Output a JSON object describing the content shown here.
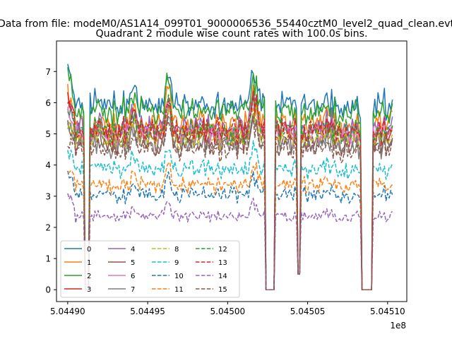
{
  "figure": {
    "suptitle": "Data from file: modeM0/AS1A14_099T01_9000006536_55440cztM0_level2_quad_clean.evt"
  },
  "chart_data": {
    "type": "line",
    "title": "Quadrant 2 module wise count rates with 100.0s bins.",
    "xlabel": "",
    "ylabel": "",
    "x_offset_label": "1e8",
    "xlim": [
      504489300,
      504511200
    ],
    "ylim": [
      -0.38,
      7.98
    ],
    "x_ticks": [
      504490000,
      504495000,
      504500000,
      504505000,
      504510000
    ],
    "x_tick_labels": [
      "5.04490",
      "5.04495",
      "5.04500",
      "5.04505",
      "5.04510"
    ],
    "y_ticks": [
      0,
      1,
      2,
      3,
      4,
      5,
      6,
      7
    ],
    "y_tick_labels": [
      "0",
      "1",
      "2",
      "3",
      "4",
      "5",
      "6",
      "7"
    ],
    "x_start": 504490000,
    "x_step": 100,
    "n_points": 204,
    "gaps": [
      {
        "start": 504491100,
        "end": 504491300,
        "value": 0
      },
      {
        "start": 504502400,
        "end": 504502900,
        "value": 0
      },
      {
        "start": 504504400,
        "end": 504504500,
        "value": 0.5
      },
      {
        "start": 504508400,
        "end": 504509000,
        "value": 0
      }
    ],
    "features": [
      {
        "center": 504496300,
        "width": 200,
        "amplitude": 0.22
      },
      {
        "center": 504501700,
        "width": 300,
        "amplitude": 0.18
      },
      {
        "center": 504494100,
        "width": 250,
        "amplitude": 0.08
      },
      {
        "center": 504506200,
        "width": 300,
        "amplitude": 0.07
      }
    ],
    "legend_location": "lower left",
    "series": [
      {
        "name": "0",
        "color": "#1f77b4",
        "style": "solid",
        "level": 5.9,
        "start": 7.55
      },
      {
        "name": "1",
        "color": "#ff7f0e",
        "style": "solid",
        "level": 5.3,
        "start": 6.6
      },
      {
        "name": "2",
        "color": "#2ca02c",
        "style": "solid",
        "level": 5.7,
        "start": 7.3
      },
      {
        "name": "3",
        "color": "#d62728",
        "style": "solid",
        "level": 5.05,
        "start": 6.5
      },
      {
        "name": "4",
        "color": "#9467bd",
        "style": "solid",
        "level": 5.2,
        "start": 6.2
      },
      {
        "name": "5",
        "color": "#8c564b",
        "style": "solid",
        "level": 4.75,
        "start": 5.4
      },
      {
        "name": "6",
        "color": "#e377c2",
        "style": "solid",
        "level": 5.0,
        "start": 6.0
      },
      {
        "name": "7",
        "color": "#7f7f7f",
        "style": "solid",
        "level": 4.6,
        "start": 5.6
      },
      {
        "name": "8",
        "color": "#bcbd22",
        "style": "dashed",
        "level": 4.9,
        "start": 5.5
      },
      {
        "name": "9",
        "color": "#17becf",
        "style": "dashed",
        "level": 3.85,
        "start": 4.6
      },
      {
        "name": "10",
        "color": "#1f77b4",
        "style": "dashed",
        "level": 3.05,
        "start": 4.0
      },
      {
        "name": "11",
        "color": "#ff7f0e",
        "style": "dashed",
        "level": 3.35,
        "start": 3.9
      },
      {
        "name": "12",
        "color": "#2ca02c",
        "style": "dashed",
        "level": 5.1,
        "start": 6.1
      },
      {
        "name": "13",
        "color": "#d62728",
        "style": "dashed",
        "level": 5.1,
        "start": 6.3
      },
      {
        "name": "14",
        "color": "#9467bd",
        "style": "dashed",
        "level": 2.35,
        "start": 3.3
      },
      {
        "name": "15",
        "color": "#8c564b",
        "style": "dashed",
        "level": 4.5,
        "start": 5.0
      }
    ]
  }
}
